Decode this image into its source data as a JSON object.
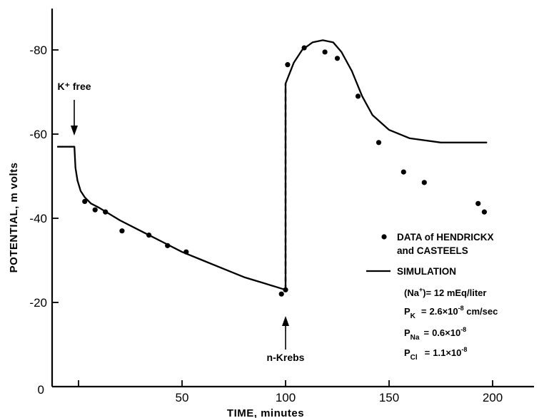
{
  "chart_data": {
    "type": "line",
    "xlabel": "TIME, minutes",
    "ylabel": "POTENTIAL, m volts",
    "xlim": [
      -5,
      215
    ],
    "ylim": [
      0,
      -87
    ],
    "xticks": [
      0,
      50,
      100,
      150,
      200
    ],
    "xtick_labels": [
      "0",
      "50",
      "100",
      "150",
      "200"
    ],
    "yticks": [
      -20,
      -40,
      -60,
      -80
    ],
    "ytick_labels": [
      "-20",
      "-40",
      "-60",
      "-80"
    ],
    "series": [
      {
        "name": "SIMULATION",
        "style": "solid line",
        "points": [
          [
            -10,
            -57
          ],
          [
            -2,
            -57
          ],
          [
            -1.5,
            -52
          ],
          [
            -0.5,
            -49
          ],
          [
            1,
            -46.5
          ],
          [
            3,
            -45
          ],
          [
            6,
            -43.5
          ],
          [
            10,
            -42.5
          ],
          [
            20,
            -39.5
          ],
          [
            30,
            -37
          ],
          [
            40,
            -34.5
          ],
          [
            50,
            -32
          ],
          [
            60,
            -30
          ],
          [
            70,
            -28
          ],
          [
            80,
            -26
          ],
          [
            90,
            -24.5
          ],
          [
            100,
            -23
          ],
          [
            100,
            -72
          ],
          [
            104,
            -77
          ],
          [
            108,
            -80
          ],
          [
            113,
            -81.8
          ],
          [
            118,
            -82.3
          ],
          [
            123,
            -81.8
          ],
          [
            127,
            -79.5
          ],
          [
            132,
            -75
          ],
          [
            137,
            -69
          ],
          [
            142,
            -64.5
          ],
          [
            150,
            -61
          ],
          [
            160,
            -59
          ],
          [
            175,
            -58
          ],
          [
            197,
            -58
          ]
        ]
      },
      {
        "name": "dashed transition",
        "style": "dashed line",
        "points": [
          [
            100,
            -23
          ],
          [
            100,
            -72
          ]
        ]
      },
      {
        "name": "DATA of HENDRICKX and CASTEELS",
        "style": "dots",
        "points": [
          [
            3,
            -44
          ],
          [
            8,
            -42
          ],
          [
            13,
            -41.5
          ],
          [
            21,
            -37
          ],
          [
            34,
            -36
          ],
          [
            43,
            -33.5
          ],
          [
            52,
            -32
          ],
          [
            98,
            -22
          ],
          [
            100,
            -23
          ],
          [
            101,
            -76.5
          ],
          [
            109,
            -80.5
          ],
          [
            119,
            -79.5
          ],
          [
            125,
            -78
          ],
          [
            135,
            -69
          ],
          [
            145,
            -58
          ],
          [
            157,
            -51
          ],
          [
            167,
            -48.5
          ],
          [
            193,
            -43.5
          ],
          [
            196,
            -41.5
          ]
        ]
      }
    ],
    "annotations": [
      {
        "label": "K⁺ free",
        "x": -2
      },
      {
        "label": "n-Krebs",
        "x": 100
      }
    ],
    "legend": {
      "position": "right",
      "data_label_line1": "DATA of HENDRICKX",
      "data_label_line2": "and CASTEELS",
      "simulation_label": "SIMULATION"
    },
    "parameters": {
      "na": {
        "pre": "(Na",
        "sup": "+",
        "post": ")= 12 mEq/liter"
      },
      "pk": {
        "sym": "P",
        "sub": "K",
        "eq": "=",
        "mant": "2.6×10",
        "exp": "-8",
        "unit": " cm/sec"
      },
      "pna": {
        "sym": "P",
        "sub": "Na",
        "eq": "=",
        "mant": "0.6×10",
        "exp": "-8"
      },
      "pcl": {
        "sym": "P",
        "sub": "Cl",
        "eq": "=",
        "mant": "1.1×10",
        "exp": "-8"
      }
    },
    "grid": false
  }
}
